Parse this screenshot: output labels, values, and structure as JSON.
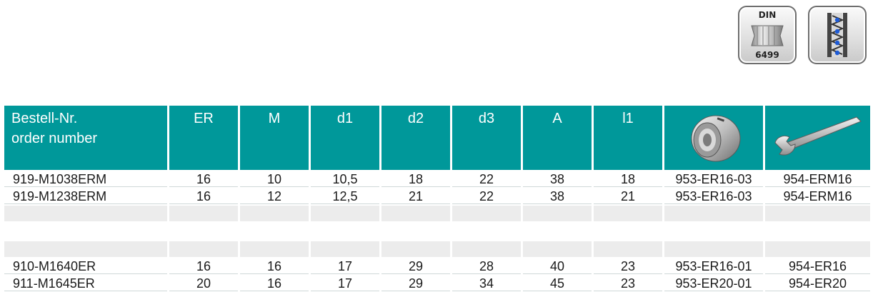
{
  "badges": {
    "din_top": "DIN",
    "din_bottom": "6499"
  },
  "table": {
    "headers": {
      "order_line1": "Bestell-Nr.",
      "order_line2": "order number",
      "er": "ER",
      "m": "M",
      "d1": "d1",
      "d2": "d2",
      "d3": "d3",
      "a": "A",
      "l1": "l1",
      "nut_icon": "clamping-nut-icon",
      "wrench_icon": "wrench-icon"
    },
    "rows": [
      [
        "919-M1038ERM",
        "16",
        "10",
        "10,5",
        "18",
        "22",
        "38",
        "18",
        "953-ER16-03",
        "954-ERM16"
      ],
      [
        "919-M1238ERM",
        "16",
        "12",
        "12,5",
        "21",
        "22",
        "38",
        "21",
        "953-ER16-03",
        "954-ERM16"
      ],
      [
        "910-M1640ER",
        "16",
        "16",
        "17",
        "29",
        "28",
        "40",
        "23",
        "953-ER16-01",
        "954-ER16"
      ],
      [
        "911-M1645ER",
        "20",
        "16",
        "17",
        "29",
        "34",
        "45",
        "23",
        "953-ER20-01",
        "954-ER20"
      ]
    ]
  },
  "colors": {
    "header_bg": "#00989a",
    "blank_row": "#ececec"
  }
}
